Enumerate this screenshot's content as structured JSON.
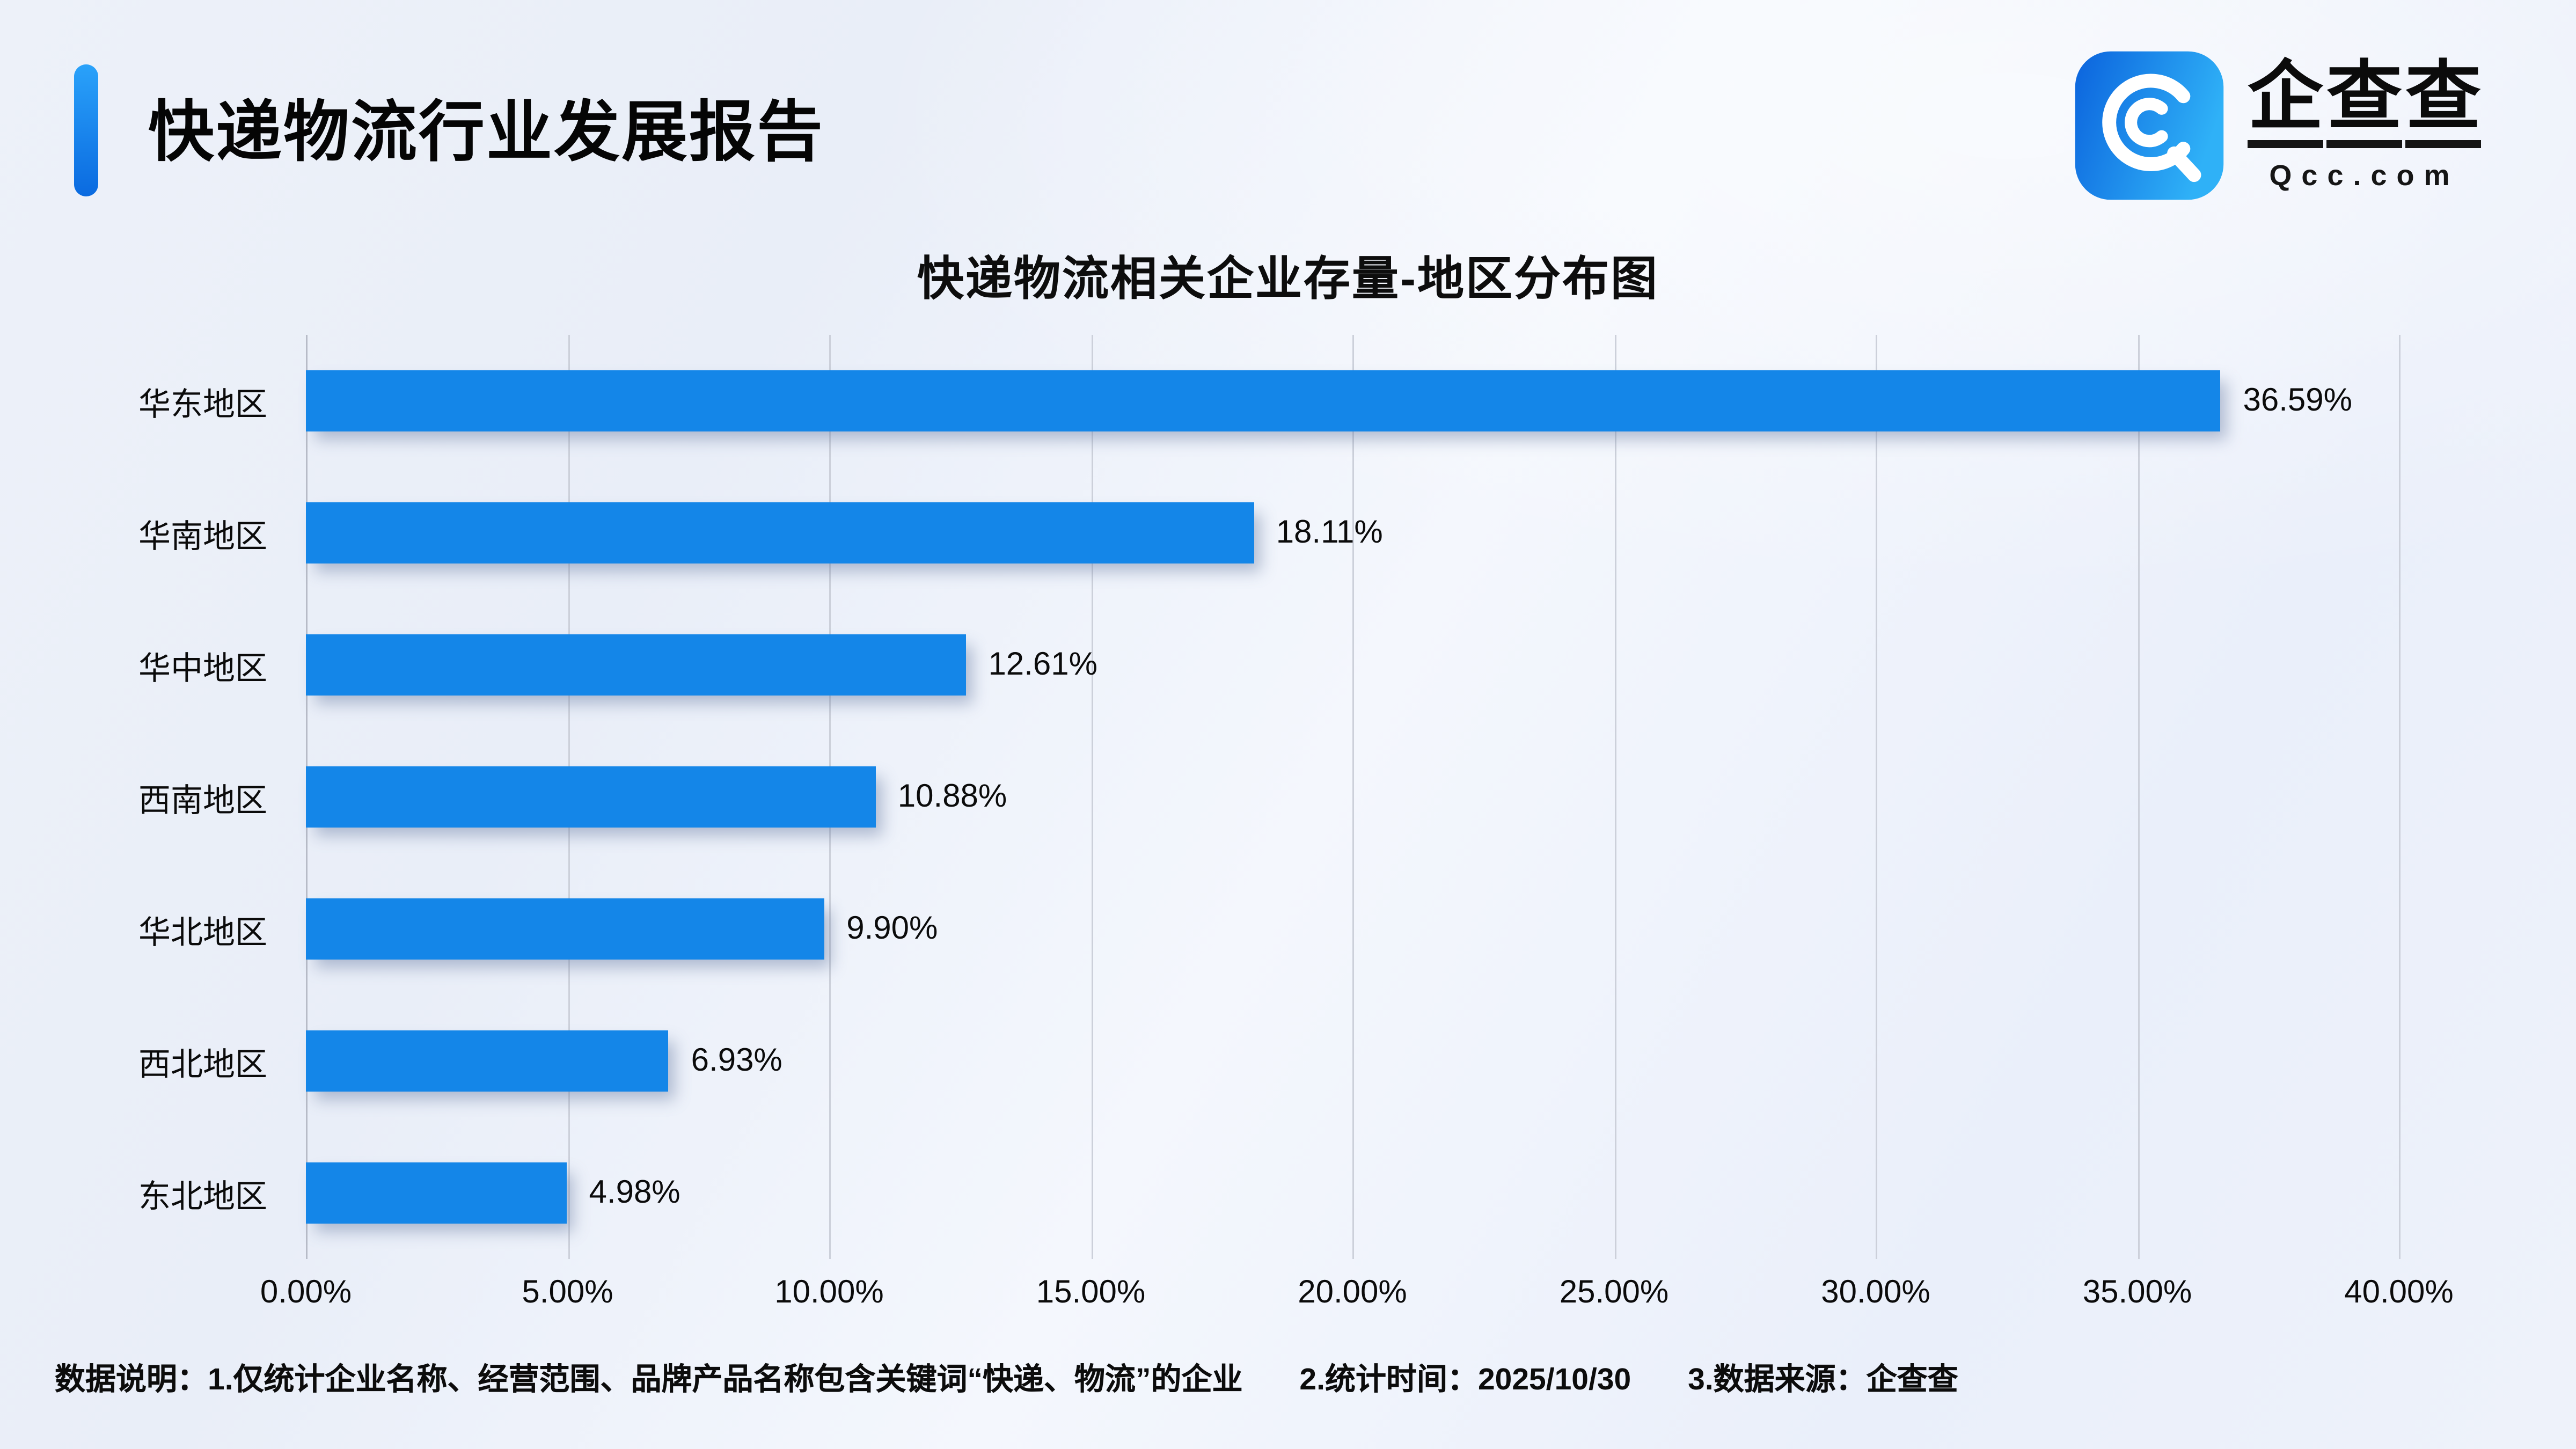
{
  "page": {
    "background_start": "#edf1f9",
    "background_end": "#eef2fa"
  },
  "header": {
    "title": "快递物流行业发展报告",
    "accent_color_top": "#2aa2fa",
    "accent_color_bottom": "#0a6ae0"
  },
  "logo": {
    "brand_chars": [
      "企",
      "查",
      "查"
    ],
    "brand": "企查查",
    "domain": "Qcc.com",
    "icon": "qcc-spiral-q-icon",
    "icon_gradient_start": "#0b63dd",
    "icon_gradient_end": "#2fb1f7"
  },
  "chart_data": {
    "type": "bar",
    "orientation": "horizontal",
    "title": "快递物流相关企业存量-地区分布图",
    "categories": [
      "华东地区",
      "华南地区",
      "华中地区",
      "西南地区",
      "华北地区",
      "西北地区",
      "东北地区"
    ],
    "values": [
      36.59,
      18.11,
      12.61,
      10.88,
      9.9,
      6.93,
      4.98
    ],
    "value_labels": [
      "36.59%",
      "18.11%",
      "12.61%",
      "10.88%",
      "9.90%",
      "6.93%",
      "4.98%"
    ],
    "x_ticks": [
      "0.00%",
      "5.00%",
      "10.00%",
      "15.00%",
      "20.00%",
      "25.00%",
      "30.00%",
      "35.00%",
      "40.00%"
    ],
    "xlim": [
      0,
      40
    ],
    "xlabel": "",
    "ylabel": "",
    "bar_color": "#1486e8",
    "grid": true,
    "gridline_color": "#ccd0da",
    "legend_position": "none"
  },
  "footer": {
    "note1": "数据说明：1.仅统计企业名称、经营范围、品牌产品名称包含关键词“快递、物流”的企业",
    "note2": "2.统计时间：2025/10/30",
    "note3": "3.数据来源：企查查"
  }
}
